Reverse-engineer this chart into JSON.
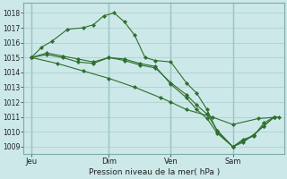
{
  "background_color": "#cce8e8",
  "grid_color": "#aacccc",
  "line_color": "#2d6e2d",
  "marker_color": "#2d6e2d",
  "xlabel": "Pression niveau de la mer( hPa )",
  "ylim": [
    1008.5,
    1018.7
  ],
  "yticks": [
    1009,
    1010,
    1011,
    1012,
    1013,
    1014,
    1015,
    1016,
    1017,
    1018
  ],
  "xtick_labels": [
    "Jeu",
    "Dim",
    "Ven",
    "Sam"
  ],
  "xtick_positions": [
    0,
    30,
    54,
    78
  ],
  "xlim": [
    -3,
    98
  ],
  "series": [
    {
      "x": [
        0,
        10,
        20,
        30,
        40,
        50,
        54,
        60,
        70,
        78,
        88,
        96
      ],
      "y": [
        1015.0,
        1014.6,
        1014.1,
        1013.6,
        1013.0,
        1012.3,
        1012.0,
        1011.5,
        1011.0,
        1010.5,
        1010.9,
        1011.0
      ]
    },
    {
      "x": [
        0,
        4,
        8,
        14,
        20,
        24,
        28,
        32,
        36,
        40,
        44,
        48,
        54,
        60,
        64,
        68,
        72,
        78,
        82,
        86,
        90,
        94
      ],
      "y": [
        1015.0,
        1015.7,
        1016.1,
        1016.9,
        1017.0,
        1017.2,
        1017.8,
        1018.0,
        1017.4,
        1016.5,
        1015.0,
        1014.8,
        1014.7,
        1013.3,
        1012.6,
        1011.5,
        1010.0,
        1009.0,
        1009.4,
        1009.8,
        1010.4,
        1011.0
      ]
    },
    {
      "x": [
        0,
        6,
        12,
        18,
        24,
        30,
        36,
        42,
        48,
        54,
        60,
        64,
        68,
        72,
        78,
        82,
        86,
        90,
        94
      ],
      "y": [
        1015.0,
        1015.2,
        1015.0,
        1014.7,
        1014.6,
        1015.0,
        1014.8,
        1014.5,
        1014.3,
        1013.3,
        1012.5,
        1011.8,
        1011.2,
        1010.1,
        1009.0,
        1009.3,
        1009.8,
        1010.4,
        1011.0
      ]
    },
    {
      "x": [
        0,
        6,
        12,
        18,
        24,
        30,
        36,
        42,
        48,
        54,
        60,
        64,
        68,
        72,
        78,
        82,
        86,
        90,
        94
      ],
      "y": [
        1015.0,
        1015.3,
        1015.1,
        1014.9,
        1014.7,
        1015.0,
        1014.9,
        1014.6,
        1014.4,
        1013.2,
        1012.3,
        1011.5,
        1010.9,
        1009.9,
        1009.0,
        1009.5,
        1009.7,
        1010.6,
        1011.0
      ]
    }
  ]
}
